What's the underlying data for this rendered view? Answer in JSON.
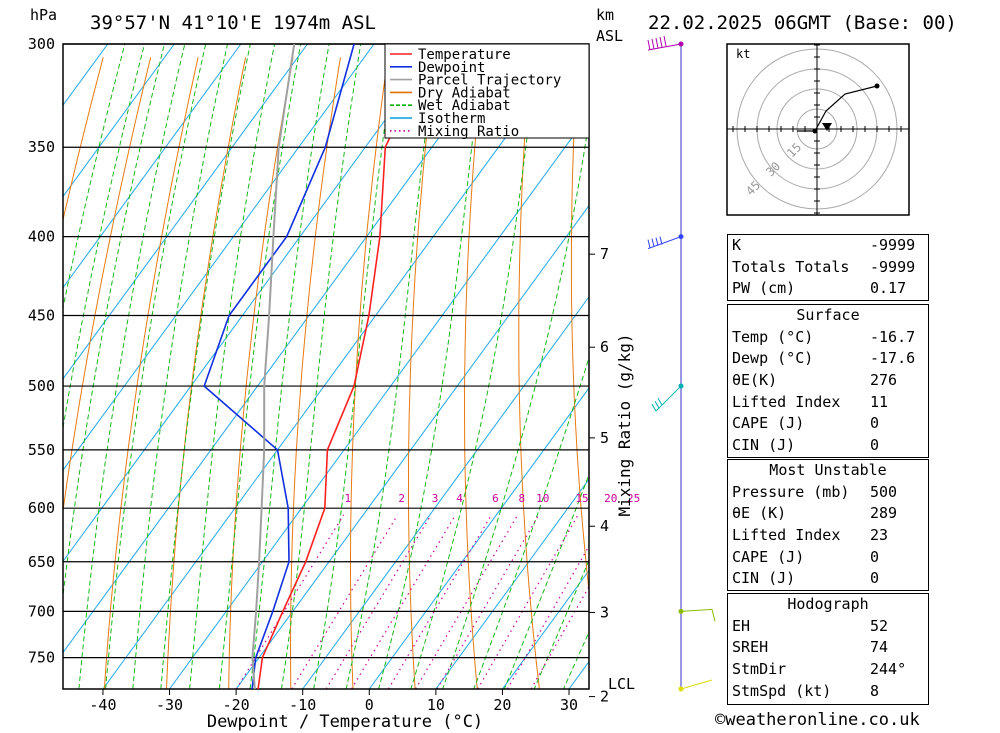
{
  "header": {
    "pressure_unit": "hPa",
    "location": "39°57'N  41°10'E  1974m  ASL",
    "km_label": "km",
    "asl_label": "ASL",
    "datetime": "22.02.2025  06GMT  (Base: 00)"
  },
  "chart_data": {
    "type": "line",
    "subtype": "skew-t log-p",
    "xlabel": "Dewpoint / Temperature (°C)",
    "ylabel": "hPa",
    "right_axis_label": "Mixing Ratio (g/kg)",
    "pressure_levels": [
      300,
      350,
      400,
      450,
      500,
      550,
      600,
      650,
      700,
      750
    ],
    "pressure_range": [
      300,
      786
    ],
    "temperature_ticks": [
      -40,
      -30,
      -20,
      -10,
      0,
      10,
      20,
      30
    ],
    "temperature_range_at_bottom": [
      -46,
      33
    ],
    "km_ticks": [
      {
        "km": 2,
        "label": "2"
      },
      {
        "km": 3,
        "label": "3"
      },
      {
        "km": 4,
        "label": "4"
      },
      {
        "km": 5,
        "label": "5"
      },
      {
        "km": 6,
        "label": "6"
      },
      {
        "km": 7,
        "label": "7"
      }
    ],
    "lcl_label": "LCL",
    "mixing_ratio_labels": [
      "1",
      "2",
      "3",
      "4",
      "6",
      "8",
      "10",
      "15",
      "20",
      "25"
    ],
    "mixing_ratio_values": [
      1,
      2,
      3,
      4,
      6,
      8,
      10,
      15,
      20,
      25
    ],
    "legend": [
      {
        "name": "Temperature",
        "color": "#ff2020",
        "style": "solid"
      },
      {
        "name": "Dewpoint",
        "color": "#1030e0",
        "style": "solid"
      },
      {
        "name": "Parcel Trajectory",
        "color": "#a0a0a0",
        "style": "solid"
      },
      {
        "name": "Dry Adiabat",
        "color": "#e07000",
        "style": "solid"
      },
      {
        "name": "Wet Adiabat",
        "color": "#00b000",
        "style": "dashed"
      },
      {
        "name": "Isotherm",
        "color": "#00a0e0",
        "style": "solid"
      },
      {
        "name": "Mixing Ratio",
        "color": "#c000a0",
        "style": "dotted"
      }
    ],
    "series": [
      {
        "name": "Temperature",
        "points": [
          [
            786,
            -16.7
          ],
          [
            750,
            -19.5
          ],
          [
            700,
            -21.5
          ],
          [
            650,
            -23.5
          ],
          [
            600,
            -26.5
          ],
          [
            550,
            -32.5
          ],
          [
            500,
            -35.5
          ],
          [
            450,
            -41
          ],
          [
            400,
            -48
          ],
          [
            350,
            -57
          ],
          [
            300,
            -61
          ]
        ]
      },
      {
        "name": "Dewpoint",
        "points": [
          [
            786,
            -17.6
          ],
          [
            750,
            -20.5
          ],
          [
            700,
            -23
          ],
          [
            650,
            -26
          ],
          [
            600,
            -32
          ],
          [
            550,
            -40
          ],
          [
            500,
            -58
          ],
          [
            450,
            -62
          ],
          [
            400,
            -62
          ],
          [
            350,
            -66
          ],
          [
            300,
            -73
          ]
        ]
      },
      {
        "name": "Parcel Trajectory",
        "points": [
          [
            786,
            -17.2
          ],
          [
            750,
            -21
          ],
          [
            700,
            -25.5
          ],
          [
            650,
            -30.5
          ],
          [
            600,
            -36
          ],
          [
            550,
            -42
          ],
          [
            500,
            -49
          ],
          [
            450,
            -56
          ],
          [
            400,
            -64
          ],
          [
            350,
            -73
          ],
          [
            300,
            -82
          ]
        ]
      }
    ]
  },
  "hodograph": {
    "unit": "kt",
    "ring_labels": [
      "15",
      "30",
      "45"
    ]
  },
  "indices": {
    "rows": [
      {
        "label": "K",
        "value": "-9999"
      },
      {
        "label": "Totals Totals",
        "value": "-9999"
      },
      {
        "label": "PW (cm)",
        "value": "0.17"
      }
    ]
  },
  "surface": {
    "title": "Surface",
    "rows": [
      {
        "label": "Temp (°C)",
        "value": "-16.7"
      },
      {
        "label": "Dewp (°C)",
        "value": "-17.6"
      },
      {
        "label": "θE(K)",
        "value": "276"
      },
      {
        "label": "Lifted Index",
        "value": "11"
      },
      {
        "label": "CAPE (J)",
        "value": "0"
      },
      {
        "label": "CIN (J)",
        "value": "0"
      }
    ]
  },
  "most_unstable": {
    "title": "Most Unstable",
    "rows": [
      {
        "label": "Pressure (mb)",
        "value": "500"
      },
      {
        "label": "θE (K)",
        "value": "289"
      },
      {
        "label": "Lifted Index",
        "value": "23"
      },
      {
        "label": "CAPE (J)",
        "value": "0"
      },
      {
        "label": "CIN (J)",
        "value": "0"
      }
    ]
  },
  "hodograph_table": {
    "title": "Hodograph",
    "rows": [
      {
        "label": "EH",
        "value": "52"
      },
      {
        "label": "SREH",
        "value": "74"
      },
      {
        "label": "StmDir",
        "value": "244°"
      },
      {
        "label": "StmSpd (kt)",
        "value": "8"
      }
    ]
  },
  "footer": "©weatheronline.co.uk"
}
